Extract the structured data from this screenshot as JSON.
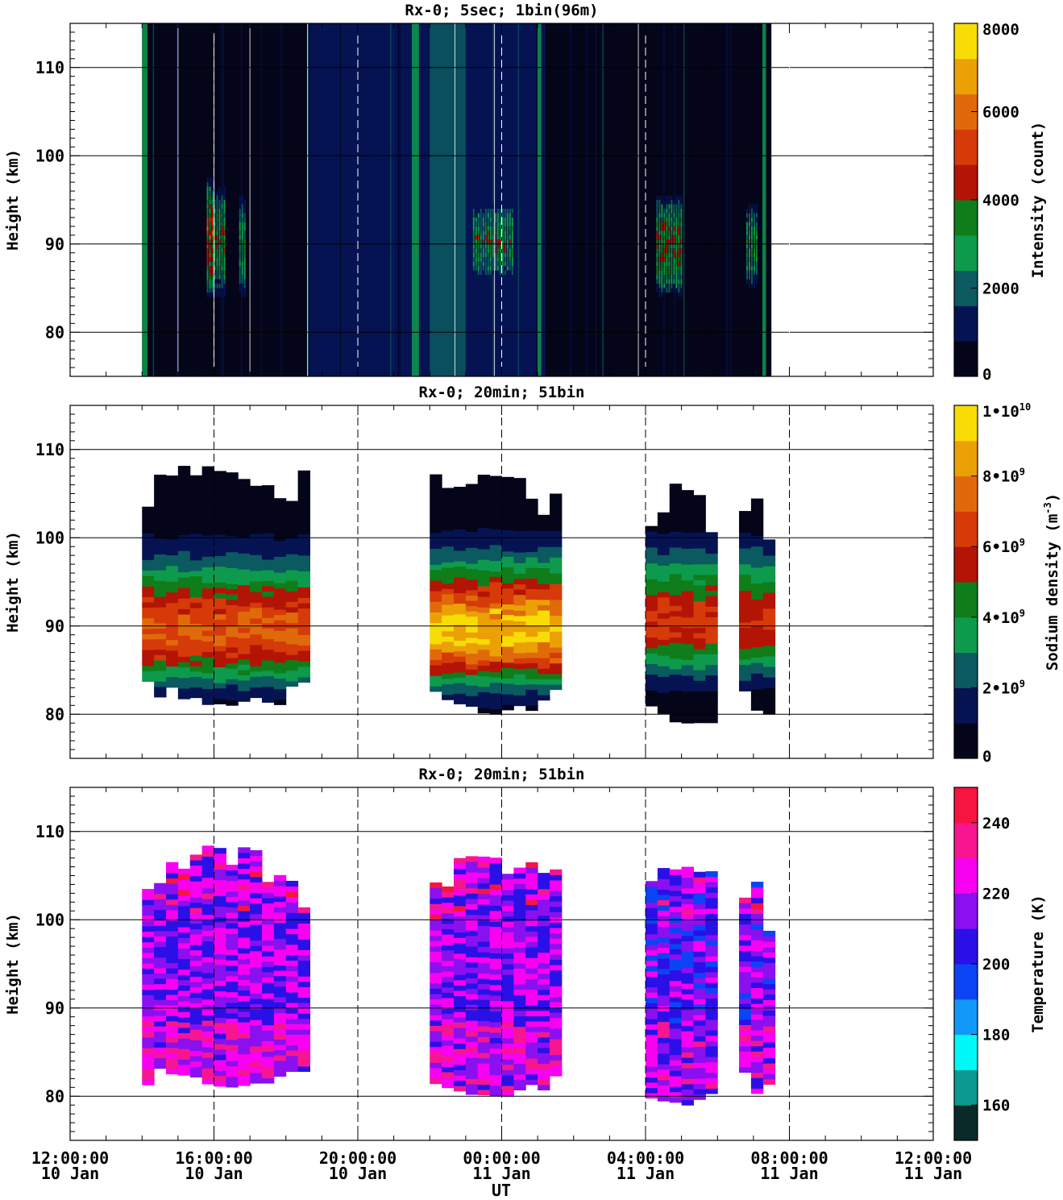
{
  "chart_data": [
    {
      "type": "heatmap",
      "title": "Rx-0;  5sec; 1bin(96m)",
      "ylabel": "Height (km)",
      "ylim": [
        75,
        115
      ],
      "xlim_hours_from_start": [
        0,
        24
      ],
      "y_ticks": [
        "80",
        "90",
        "100",
        "110"
      ],
      "grid": "on",
      "colorbar": {
        "label": "Intensity (count)",
        "range": [
          0,
          8000
        ],
        "ticks": [
          "0",
          "2000",
          "4000",
          "6000",
          "8000"
        ],
        "colors": [
          "#05051a",
          "#061352",
          "#0a5a60",
          "#0d9a4c",
          "#0f7d1a",
          "#b31405",
          "#d63a08",
          "#e06a0a",
          "#eba005",
          "#f7dc05"
        ]
      },
      "features": [
        {
          "start": 14.0,
          "end": 14.15,
          "bottom": 75,
          "top": 115,
          "intensity": 2500
        },
        {
          "start": 15.8,
          "end": 16.0,
          "bottom": 83,
          "top": 98,
          "intensity": 5500
        },
        {
          "start": 16.0,
          "end": 16.3,
          "bottom": 83,
          "top": 97,
          "intensity": 4000
        },
        {
          "start": 16.7,
          "end": 16.85,
          "bottom": 83,
          "top": 96,
          "intensity": 3500
        },
        {
          "start": 21.5,
          "end": 21.7,
          "bottom": 75,
          "top": 115,
          "intensity": 2500
        },
        {
          "start": 22.0,
          "end": 23.0,
          "bottom": 75,
          "top": 115,
          "intensity": 2000
        },
        {
          "start": 23.2,
          "end": 24.3,
          "bottom": 85,
          "top": 95,
          "intensity": 4000
        },
        {
          "start": 25.0,
          "end": 25.1,
          "bottom": 75,
          "top": 115,
          "intensity": 2500
        },
        {
          "start": 28.3,
          "end": 29.0,
          "bottom": 83,
          "top": 96,
          "intensity": 4500
        },
        {
          "start": 30.8,
          "end": 31.1,
          "bottom": 84,
          "top": 95,
          "intensity": 3500
        },
        {
          "start": 31.25,
          "end": 31.35,
          "bottom": 75,
          "top": 115,
          "intensity": 2500
        }
      ],
      "background": [
        {
          "start": 14.0,
          "end": 18.6,
          "intensity": 300
        },
        {
          "start": 18.6,
          "end": 21.0,
          "intensity": 900
        },
        {
          "start": 21.0,
          "end": 25.2,
          "intensity": 900
        },
        {
          "start": 25.2,
          "end": 31.5,
          "intensity": 200
        }
      ]
    },
    {
      "type": "heatmap",
      "title": "Rx-0; 20min; 51bin",
      "ylabel": "Height (km)",
      "ylim": [
        75,
        115
      ],
      "xlim_hours_from_start": [
        0,
        24
      ],
      "y_ticks": [
        "80",
        "90",
        "100",
        "110"
      ],
      "grid": "on",
      "colorbar": {
        "label": "Sodium density (m^-3)",
        "range": [
          0,
          10000000000
        ],
        "ticks": [
          "0",
          "2•10^9",
          "4•10^9",
          "6•10^9",
          "8•10^9",
          "1•10^10"
        ],
        "colors": [
          "#05051a",
          "#061352",
          "#0a5a60",
          "#0d9a4c",
          "#0f7d1a",
          "#b31405",
          "#d63a08",
          "#e06a0a",
          "#eba005",
          "#f7dc05"
        ]
      },
      "blocks": [
        {
          "start": 14.0,
          "end": 18.4,
          "bottom": 81,
          "top": 108,
          "peak_height": 89,
          "peak": 7500000000
        },
        {
          "start": 22.0,
          "end": 25.4,
          "bottom": 80,
          "top": 107,
          "peak_height": 89,
          "peak": 9500000000
        },
        {
          "start": 28.0,
          "end": 30.0,
          "bottom": 79,
          "top": 106,
          "peak_height": 90,
          "peak": 6500000000
        },
        {
          "start": 30.6,
          "end": 31.4,
          "bottom": 80,
          "top": 104,
          "peak_height": 90,
          "peak": 6500000000
        }
      ]
    },
    {
      "type": "heatmap",
      "title": "Rx-0; 20min; 51bin",
      "ylabel": "Height (km)",
      "ylim": [
        75,
        115
      ],
      "xlim_hours_from_start": [
        0,
        24
      ],
      "y_ticks": [
        "80",
        "90",
        "100",
        "110"
      ],
      "grid": "on",
      "colorbar": {
        "label": "Temperature (K)",
        "range": [
          150,
          250
        ],
        "ticks": [
          "160",
          "180",
          "200",
          "220",
          "240"
        ],
        "colors": [
          "#0a2a2a",
          "#0a9a90",
          "#00f8f8",
          "#1299f8",
          "#0a44f5",
          "#2a10e6",
          "#8a10f0",
          "#f800f0",
          "#f81690",
          "#f81440"
        ]
      },
      "blocks": [
        {
          "start": 14.0,
          "end": 18.4,
          "bottom": 81,
          "top": 108,
          "mean": 215
        },
        {
          "start": 22.0,
          "end": 25.4,
          "bottom": 80,
          "top": 107,
          "mean": 215
        },
        {
          "start": 28.0,
          "end": 30.0,
          "bottom": 79,
          "top": 106,
          "mean": 210
        },
        {
          "start": 30.6,
          "end": 31.4,
          "bottom": 80,
          "top": 104,
          "mean": 212
        }
      ]
    }
  ],
  "x_axis": {
    "label": "UT",
    "ticks": [
      {
        "time": "12:00:00",
        "date": "10 Jan"
      },
      {
        "time": "16:00:00",
        "date": "10 Jan"
      },
      {
        "time": "20:00:00",
        "date": "10 Jan"
      },
      {
        "time": "00:00:00",
        "date": "11 Jan"
      },
      {
        "time": "04:00:00",
        "date": "11 Jan"
      },
      {
        "time": "08:00:00",
        "date": "11 Jan"
      },
      {
        "time": "12:00:00",
        "date": "11 Jan"
      }
    ]
  }
}
